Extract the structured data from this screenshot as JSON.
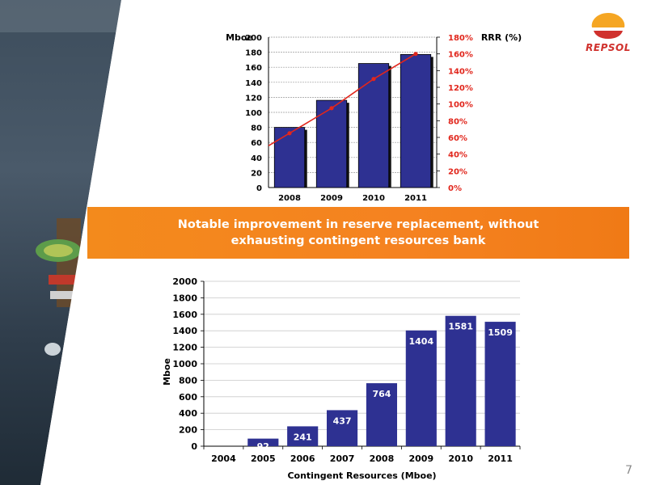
{
  "colors": {
    "bar": "#2e3192",
    "bar_dark": "#1a1c5e",
    "line": "#e1261c",
    "accent_orange": "#f58220",
    "page_number": "#888888"
  },
  "logo": {
    "text": "REPSOL"
  },
  "banner": {
    "line1": "Notable improvement in reserve replacement, without",
    "line2": "exhausting contingent resources bank"
  },
  "page_number": "7",
  "chart_data": [
    {
      "type": "bar",
      "categories": [
        "2008",
        "2009",
        "2010",
        "2011"
      ],
      "series": [
        {
          "axis": "left",
          "values": [
            80,
            116,
            165,
            177
          ]
        },
        {
          "axis": "right",
          "type": "line",
          "values": [
            65,
            95,
            130,
            160
          ]
        }
      ],
      "ylabel": "Mboe",
      "y2label": "RRR (%)",
      "ylim": [
        0,
        200
      ],
      "y2lim": [
        0,
        180
      ],
      "yticks": [
        "0",
        "20",
        "40",
        "60",
        "80",
        "100",
        "120",
        "140",
        "160",
        "180",
        "200"
      ],
      "y2ticks": [
        "0%",
        "20%",
        "40%",
        "60%",
        "80%",
        "100%",
        "120%",
        "140%",
        "160%",
        "180%"
      ],
      "grid": true
    },
    {
      "type": "bar",
      "categories": [
        "2004",
        "2005",
        "2006",
        "2007",
        "2008",
        "2009",
        "2010",
        "2011"
      ],
      "values": [
        0,
        92,
        241,
        437,
        764,
        1404,
        1581,
        1509
      ],
      "labels": [
        "",
        "92",
        "241",
        "437",
        "764",
        "1404",
        "1581",
        "1509"
      ],
      "xlabel": "Contingent Resources (Mboe)",
      "ylabel": "Mboe",
      "ylim": [
        0,
        2000
      ],
      "yticks": [
        "0",
        "200",
        "400",
        "600",
        "800",
        "1000",
        "1200",
        "1400",
        "1600",
        "1800",
        "2000"
      ],
      "grid": true
    }
  ]
}
